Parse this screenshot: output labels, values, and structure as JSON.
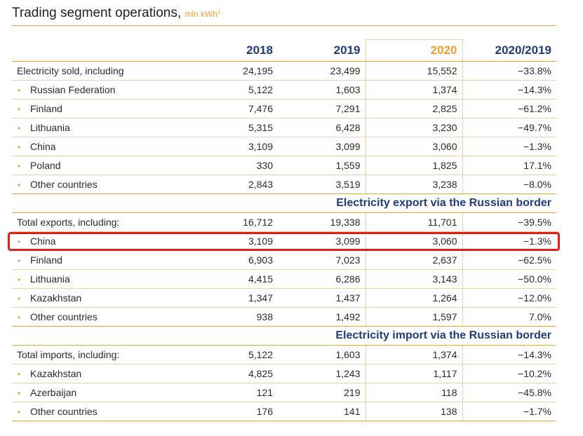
{
  "title": {
    "text": "Trading segment operations,",
    "unit": "mln kWh",
    "footnote": "1"
  },
  "columns": [
    "",
    "2018",
    "2019",
    "2020",
    "2020/2019"
  ],
  "sold": {
    "total": {
      "label": "Electricity sold, including",
      "v2018": "24,195",
      "v2019": "23,499",
      "v2020": "15,552",
      "change": "−33.8%"
    },
    "rows": [
      {
        "label": "Russian Federation",
        "v2018": "5,122",
        "v2019": "1,603",
        "v2020": "1,374",
        "change": "−14.3%"
      },
      {
        "label": "Finland",
        "v2018": "7,476",
        "v2019": "7,291",
        "v2020": "2,825",
        "change": "−61.2%"
      },
      {
        "label": "Lithuania",
        "v2018": "5,315",
        "v2019": "6,428",
        "v2020": "3,230",
        "change": "−49.7%"
      },
      {
        "label": "China",
        "v2018": "3,109",
        "v2019": "3,099",
        "v2020": "3,060",
        "change": "−1.3%"
      },
      {
        "label": "Poland",
        "v2018": "330",
        "v2019": "1,559",
        "v2020": "1,825",
        "change": "17.1%"
      },
      {
        "label": "Other countries",
        "v2018": "2,843",
        "v2019": "3,519",
        "v2020": "3,238",
        "change": "−8.0%"
      }
    ]
  },
  "export": {
    "heading": "Electricity export via the Russian border",
    "total": {
      "label": "Total exports, including:",
      "v2018": "16,712",
      "v2019": "19,338",
      "v2020": "11,701",
      "change": "−39.5%"
    },
    "rows": [
      {
        "label": "China",
        "v2018": "3,109",
        "v2019": "3,099",
        "v2020": "3,060",
        "change": "−1.3%"
      },
      {
        "label": "Finland",
        "v2018": "6,903",
        "v2019": "7,023",
        "v2020": "2,637",
        "change": "−62.5%"
      },
      {
        "label": "Lithuania",
        "v2018": "4,415",
        "v2019": "6,286",
        "v2020": "3,143",
        "change": "−50.0%"
      },
      {
        "label": "Kazakhstan",
        "v2018": "1,347",
        "v2019": "1,437",
        "v2020": "1,264",
        "change": "−12.0%"
      },
      {
        "label": "Other countries",
        "v2018": "938",
        "v2019": "1,492",
        "v2020": "1,597",
        "change": "7.0%"
      }
    ]
  },
  "import": {
    "heading": "Electricity import via the Russian border",
    "total": {
      "label": "Total imports, including:",
      "v2018": "5,122",
      "v2019": "1,603",
      "v2020": "1,374",
      "change": "−14.3%"
    },
    "rows": [
      {
        "label": "Kazakhstan",
        "v2018": "4,825",
        "v2019": "1,243",
        "v2020": "1,117",
        "change": "−10.2%"
      },
      {
        "label": "Azerbaijan",
        "v2018": "121",
        "v2019": "219",
        "v2020": "118",
        "change": "−45.8%"
      },
      {
        "label": "Other countries",
        "v2018": "176",
        "v2019": "141",
        "v2020": "138",
        "change": "−1.7%"
      }
    ]
  },
  "colors": {
    "accent": "#f0a030",
    "heading": "#1f3d7a",
    "highlight": "#e02020"
  }
}
